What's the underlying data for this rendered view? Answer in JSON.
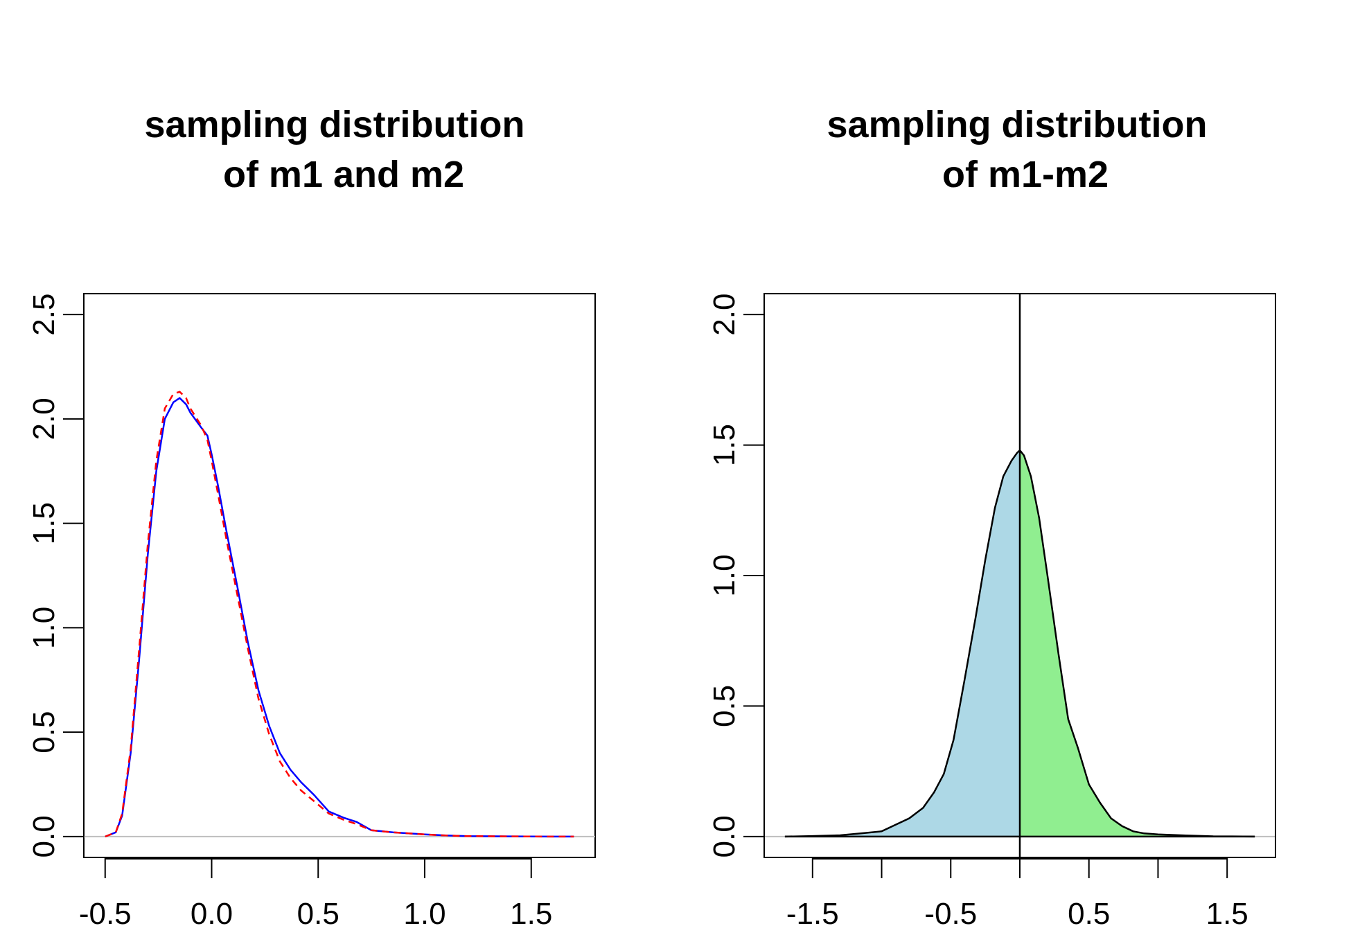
{
  "chart_data": [
    {
      "type": "line",
      "title_lines": [
        "sampling distribution",
        "of m1 and m2"
      ],
      "xlabel": "",
      "ylabel": "",
      "xlim": [
        -0.6,
        1.8
      ],
      "ylim": [
        -0.1,
        2.6
      ],
      "x_ticks": [
        -0.5,
        0.0,
        0.5,
        1.0,
        1.5
      ],
      "x_tick_labels": [
        "-0.5",
        "0.0",
        "0.5",
        "1.0",
        "1.5"
      ],
      "y_ticks": [
        0.0,
        0.5,
        1.0,
        1.5,
        2.0,
        2.5
      ],
      "y_tick_labels": [
        "0.0",
        "0.5",
        "1.0",
        "1.5",
        "2.0",
        "2.5"
      ],
      "baseline": 0,
      "series": [
        {
          "color": "#0000ff",
          "dash": "solid",
          "x": [
            -0.5,
            -0.45,
            -0.42,
            -0.38,
            -0.34,
            -0.3,
            -0.26,
            -0.22,
            -0.18,
            -0.15,
            -0.12,
            -0.1,
            -0.05,
            -0.02,
            0.0,
            0.03,
            0.07,
            0.12,
            0.17,
            0.22,
            0.27,
            0.32,
            0.37,
            0.42,
            0.48,
            0.55,
            0.62,
            0.68,
            0.75,
            0.85,
            1.0,
            1.1,
            1.2,
            1.4,
            1.6,
            1.7
          ],
          "y": [
            0.0,
            0.02,
            0.1,
            0.4,
            0.85,
            1.35,
            1.75,
            2.0,
            2.08,
            2.1,
            2.07,
            2.03,
            1.96,
            1.92,
            1.83,
            1.68,
            1.46,
            1.2,
            0.93,
            0.7,
            0.53,
            0.4,
            0.32,
            0.26,
            0.2,
            0.12,
            0.09,
            0.07,
            0.03,
            0.02,
            0.01,
            0.005,
            0.002,
            0.001,
            0.0,
            0.0
          ]
        },
        {
          "color": "#ff0000",
          "dash": "dashed",
          "x": [
            -0.5,
            -0.45,
            -0.42,
            -0.38,
            -0.34,
            -0.3,
            -0.26,
            -0.22,
            -0.18,
            -0.15,
            -0.12,
            -0.1,
            -0.05,
            -0.02,
            0.0,
            0.03,
            0.07,
            0.12,
            0.17,
            0.22,
            0.27,
            0.32,
            0.37,
            0.42,
            0.48,
            0.55,
            0.62,
            0.68,
            0.75,
            0.85,
            1.0,
            1.1,
            1.2,
            1.4,
            1.6,
            1.7
          ],
          "y": [
            0.0,
            0.02,
            0.11,
            0.42,
            0.9,
            1.4,
            1.8,
            2.05,
            2.12,
            2.13,
            2.1,
            2.05,
            1.97,
            1.9,
            1.8,
            1.64,
            1.42,
            1.16,
            0.9,
            0.66,
            0.49,
            0.36,
            0.28,
            0.22,
            0.17,
            0.11,
            0.08,
            0.06,
            0.03,
            0.02,
            0.01,
            0.005,
            0.002,
            0.001,
            0.0,
            0.0
          ]
        }
      ]
    },
    {
      "type": "area",
      "title_lines": [
        "sampling distribution",
        "of m1-m2"
      ],
      "xlabel": "",
      "ylabel": "",
      "xlim": [
        -1.85,
        1.85
      ],
      "ylim": [
        -0.08,
        2.08
      ],
      "x_ticks": [
        -1.5,
        -1.0,
        -0.5,
        0.0,
        0.5,
        1.0,
        1.5
      ],
      "x_tick_labels": [
        "-1.5",
        "",
        "-0.5",
        "",
        "0.5",
        "",
        "1.5"
      ],
      "y_ticks": [
        0.0,
        0.5,
        1.0,
        1.5,
        2.0
      ],
      "y_tick_labels": [
        "0.0",
        "0.5",
        "1.0",
        "1.5",
        "2.0"
      ],
      "baseline": 0,
      "vline_x": 0,
      "fill_left": "#add8e6",
      "fill_right": "#90ee90",
      "line_color": "#000000",
      "x": [
        -1.7,
        -1.5,
        -1.3,
        -1.15,
        -1.0,
        -0.9,
        -0.8,
        -0.7,
        -0.62,
        -0.55,
        -0.48,
        -0.4,
        -0.32,
        -0.25,
        -0.18,
        -0.12,
        -0.06,
        -0.02,
        0.0,
        0.03,
        0.08,
        0.14,
        0.2,
        0.28,
        0.35,
        0.42,
        0.5,
        0.58,
        0.66,
        0.74,
        0.82,
        0.9,
        1.0,
        1.2,
        1.4,
        1.7
      ],
      "y": [
        0.0,
        0.002,
        0.005,
        0.012,
        0.02,
        0.045,
        0.07,
        0.11,
        0.17,
        0.24,
        0.37,
        0.6,
        0.84,
        1.06,
        1.26,
        1.38,
        1.44,
        1.47,
        1.48,
        1.46,
        1.38,
        1.22,
        1.0,
        0.7,
        0.45,
        0.34,
        0.2,
        0.13,
        0.07,
        0.04,
        0.02,
        0.012,
        0.008,
        0.004,
        0.001,
        0.0
      ]
    }
  ]
}
